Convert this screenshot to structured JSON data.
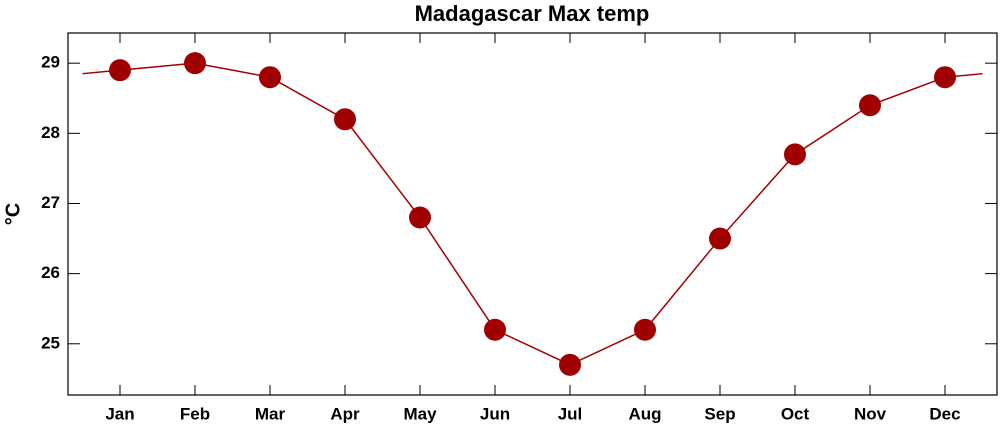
{
  "chart_data": {
    "type": "line",
    "title": "Madagascar Max temp",
    "y_label": "°C",
    "categories": [
      "Jan",
      "Feb",
      "Mar",
      "Apr",
      "May",
      "Jun",
      "Jul",
      "Aug",
      "Sep",
      "Oct",
      "Nov",
      "Dec"
    ],
    "series": [
      {
        "name": "Max temp",
        "color": "#a00000",
        "values": [
          28.9,
          29.0,
          28.8,
          28.2,
          26.8,
          25.2,
          24.7,
          25.2,
          26.5,
          27.7,
          28.4,
          28.8
        ]
      }
    ],
    "ylim": [
      24.27,
      29.43
    ],
    "yticks": [
      25,
      26,
      27,
      28,
      29
    ],
    "grid": false
  }
}
